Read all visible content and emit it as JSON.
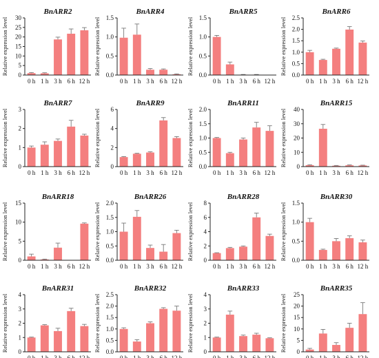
{
  "style": {
    "bar_color": "#f47f7f",
    "error_color": "#777777",
    "axis_color": "#222222"
  },
  "chart_data": [
    {
      "type": "bar",
      "title": "BnARR2",
      "ylabel": "Relative expression level",
      "categories": [
        "0 h",
        "1 h",
        "3 h",
        "6 h",
        "12 h"
      ],
      "values": [
        1.0,
        0.9,
        18.7,
        21.7,
        23.5
      ],
      "errors": [
        0.3,
        0.3,
        1.2,
        2.5,
        1.4
      ],
      "ylim": [
        0,
        30
      ],
      "yticks": [
        "0",
        "5",
        "10",
        "15",
        "20",
        "25",
        "30"
      ]
    },
    {
      "type": "bar",
      "title": "BnARR4",
      "ylabel": "Relative expression level",
      "categories": [
        "0 h",
        "1 h",
        "3 h",
        "6 h",
        "12 h"
      ],
      "values": [
        0.98,
        1.06,
        0.14,
        0.14,
        0.02
      ],
      "errors": [
        0.25,
        0.28,
        0.03,
        0.02,
        0.01
      ],
      "ylim": [
        0,
        1.5
      ],
      "yticks": [
        "0.0",
        "0.5",
        "1.0",
        "1.5"
      ]
    },
    {
      "type": "bar",
      "title": "BnARR5",
      "ylabel": "Relative expression level",
      "categories": [
        "0 h",
        "1 h",
        "3 h",
        "6 h",
        "12 h"
      ],
      "values": [
        1.0,
        0.28,
        0.01,
        0.01,
        0.0
      ],
      "errors": [
        0.04,
        0.06,
        0.005,
        0.005,
        0.0
      ],
      "ylim": [
        0,
        1.5
      ],
      "yticks": [
        "0.0",
        "0.5",
        "1.0",
        "1.5"
      ]
    },
    {
      "type": "bar",
      "title": "BnARR6",
      "ylabel": "Relative expression level",
      "categories": [
        "0 h",
        "1 h",
        "3 h",
        "6 h",
        "12 h"
      ],
      "values": [
        1.0,
        0.66,
        1.15,
        1.99,
        1.42
      ],
      "errors": [
        0.08,
        0.03,
        0.03,
        0.13,
        0.07
      ],
      "ylim": [
        0,
        2.5
      ],
      "yticks": [
        "0.0",
        "0.5",
        "1.0",
        "1.5",
        "2.0",
        "2.5"
      ]
    },
    {
      "type": "bar",
      "title": "BnARR7",
      "ylabel": "Relative expression level",
      "categories": [
        "0 h",
        "1 h",
        "3 h",
        "6 h",
        "12 h"
      ],
      "values": [
        1.0,
        1.15,
        1.35,
        2.1,
        1.63
      ],
      "errors": [
        0.08,
        0.15,
        0.1,
        0.33,
        0.07
      ],
      "ylim": [
        0,
        3
      ],
      "yticks": [
        "0",
        "1",
        "2",
        "3"
      ]
    },
    {
      "type": "bar",
      "title": "BnARR9",
      "ylabel": "Relative expression level",
      "categories": [
        "0 h",
        "1 h",
        "3 h",
        "6 h",
        "12 h"
      ],
      "values": [
        1.0,
        1.35,
        1.48,
        4.85,
        3.0
      ],
      "errors": [
        0.05,
        0.05,
        0.08,
        0.3,
        0.15
      ],
      "ylim": [
        0,
        6
      ],
      "yticks": [
        "0",
        "2",
        "4",
        "6"
      ]
    },
    {
      "type": "bar",
      "title": "BnARR11",
      "ylabel": "Relative expression level",
      "categories": [
        "0 h",
        "1 h",
        "3 h",
        "6 h",
        "12 h"
      ],
      "values": [
        1.0,
        0.47,
        0.95,
        1.37,
        1.25
      ],
      "errors": [
        0.02,
        0.03,
        0.05,
        0.18,
        0.18
      ],
      "ylim": [
        0,
        2.0
      ],
      "yticks": [
        "0.0",
        "0.5",
        "1.0",
        "1.5",
        "2.0"
      ]
    },
    {
      "type": "bar",
      "title": "BnARR15",
      "ylabel": "Relative expression level",
      "categories": [
        "0 h",
        "1 h",
        "3 h",
        "6 h",
        "12 h"
      ],
      "values": [
        1.0,
        26.5,
        0.6,
        0.9,
        0.8
      ],
      "errors": [
        0.3,
        3.0,
        0.2,
        0.3,
        0.2
      ],
      "ylim": [
        0,
        40
      ],
      "yticks": [
        "0",
        "10",
        "20",
        "30",
        "40"
      ]
    },
    {
      "type": "bar",
      "title": "BnARR18",
      "ylabel": "Relative expression level",
      "categories": [
        "0 h",
        "1 h",
        "3 h",
        "6 h",
        "12 h"
      ],
      "values": [
        1.0,
        0.2,
        3.3,
        0.0,
        9.6
      ],
      "errors": [
        0.6,
        0.1,
        1.2,
        0.0,
        0.2
      ],
      "ylim": [
        0,
        15
      ],
      "yticks": [
        "0",
        "5",
        "10",
        "15"
      ]
    },
    {
      "type": "bar",
      "title": "BnARR26",
      "ylabel": "Relative expression level",
      "categories": [
        "0 h",
        "1 h",
        "3 h",
        "6 h",
        "12 h"
      ],
      "values": [
        1.0,
        1.52,
        0.43,
        0.3,
        0.95
      ],
      "errors": [
        0.3,
        0.22,
        0.1,
        0.25,
        0.1
      ],
      "ylim": [
        0,
        2.0
      ],
      "yticks": [
        "0.0",
        "0.5",
        "1.0",
        "1.5",
        "2.0"
      ]
    },
    {
      "type": "bar",
      "title": "BnARR28",
      "ylabel": "Relative expression level",
      "categories": [
        "0 h",
        "1 h",
        "3 h",
        "6 h",
        "12 h"
      ],
      "values": [
        1.0,
        1.7,
        1.9,
        6.0,
        3.4
      ],
      "errors": [
        0.05,
        0.1,
        0.1,
        0.6,
        0.25
      ],
      "ylim": [
        0,
        8
      ],
      "yticks": [
        "0",
        "2",
        "4",
        "6",
        "8"
      ]
    },
    {
      "type": "bar",
      "title": "BnARR30",
      "ylabel": "Relative expression level",
      "categories": [
        "0 h",
        "1 h",
        "3 h",
        "6 h",
        "12 h"
      ],
      "values": [
        1.0,
        0.27,
        0.5,
        0.58,
        0.47
      ],
      "errors": [
        0.1,
        0.02,
        0.07,
        0.06,
        0.06
      ],
      "ylim": [
        0,
        1.5
      ],
      "yticks": [
        "0.0",
        "0.5",
        "1.0",
        "1.5"
      ]
    },
    {
      "type": "bar",
      "title": "BnARR31",
      "ylabel": "Relative expression level",
      "categories": [
        "0 h",
        "1 h",
        "3 h",
        "6 h",
        "12 h"
      ],
      "values": [
        1.0,
        1.85,
        1.45,
        2.85,
        1.8
      ],
      "errors": [
        0.03,
        0.05,
        0.2,
        0.2,
        0.12
      ],
      "ylim": [
        0,
        4
      ],
      "yticks": [
        "0",
        "1",
        "2",
        "3",
        "4"
      ]
    },
    {
      "type": "bar",
      "title": "BnARR32",
      "ylabel": "Relative expression level",
      "categories": [
        "0 h",
        "1 h",
        "3 h",
        "6 h",
        "12 h"
      ],
      "values": [
        1.0,
        0.45,
        1.25,
        1.88,
        1.8
      ],
      "errors": [
        0.05,
        0.08,
        0.06,
        0.05,
        0.2
      ],
      "ylim": [
        0,
        2.5
      ],
      "yticks": [
        "0.0",
        "0.5",
        "1.0",
        "1.5",
        "2.0",
        "2.5"
      ]
    },
    {
      "type": "bar",
      "title": "BnARR33",
      "ylabel": "Relative expression level",
      "categories": [
        "0 h",
        "1 h",
        "3 h",
        "6 h",
        "12 h"
      ],
      "values": [
        1.0,
        2.6,
        1.1,
        1.2,
        0.95
      ],
      "errors": [
        0.03,
        0.25,
        0.07,
        0.1,
        0.03
      ],
      "ylim": [
        0,
        4
      ],
      "yticks": [
        "0",
        "1",
        "2",
        "3",
        "4"
      ]
    },
    {
      "type": "bar",
      "title": "BnARR35",
      "ylabel": "Relative expression level",
      "categories": [
        "0 h",
        "1 h",
        "3 h",
        "6 h",
        "12 h"
      ],
      "values": [
        1.0,
        8.0,
        3.0,
        10.5,
        16.5
      ],
      "errors": [
        0.5,
        1.8,
        1.0,
        2.0,
        5.0
      ],
      "ylim": [
        0,
        25
      ],
      "yticks": [
        "0",
        "5",
        "10",
        "15",
        "20",
        "25"
      ]
    }
  ]
}
